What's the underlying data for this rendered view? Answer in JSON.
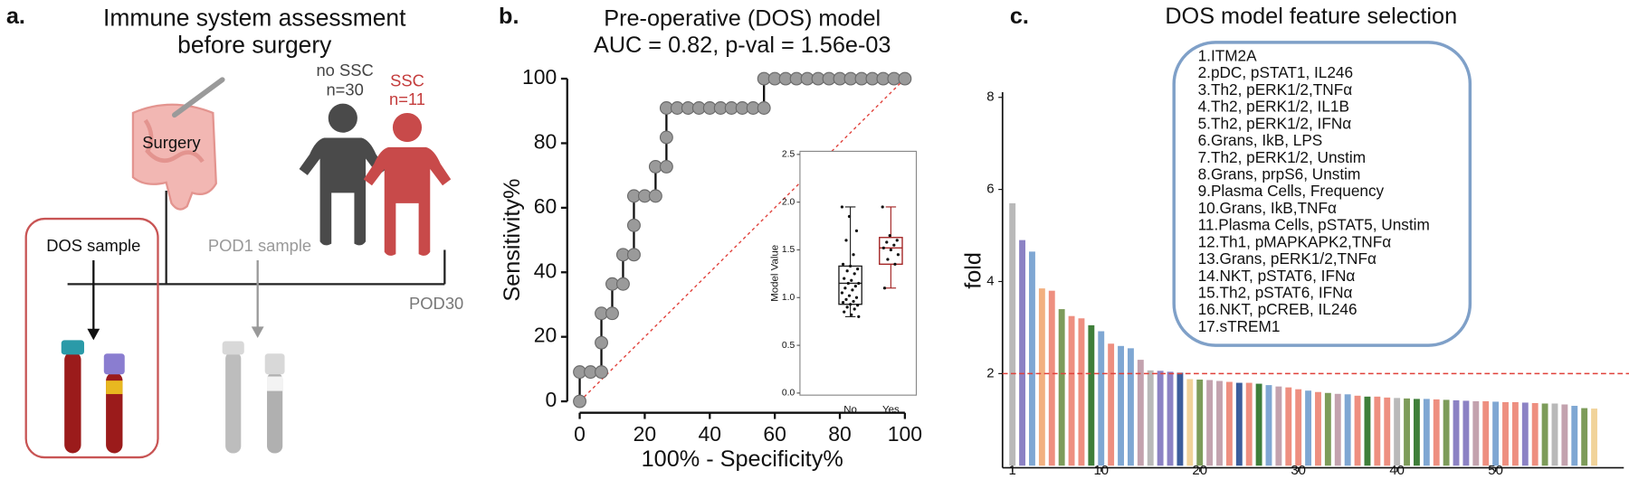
{
  "panel_labels": [
    "a.",
    "b.",
    "c."
  ],
  "diagram": {
    "title": [
      "Immune system assessment",
      "before surgery"
    ],
    "groups": [
      {
        "name": "no SSC",
        "n": "n=30"
      },
      {
        "name": "SSC",
        "n": "n=11"
      }
    ],
    "surgery": "Surgery",
    "samples": [
      "DOS sample",
      "POD1 sample"
    ],
    "endpoint": "POD30"
  },
  "chart_data": [
    {
      "type": "line",
      "title": [
        "Pre-operative (DOS) model",
        "AUC = 0.82, p-val = 1.56e-03"
      ],
      "x_label": "100% - Specificity%",
      "y_label": "Sensitivity%",
      "x": [
        0,
        0,
        3.33,
        6.67,
        6.67,
        6.67,
        10,
        10,
        13.33,
        13.33,
        16.67,
        16.67,
        16.67,
        20,
        23.33,
        23.33,
        26.67,
        26.67,
        26.67,
        30,
        33.33,
        36.67,
        40,
        43.33,
        46.67,
        50,
        53.33,
        56.67,
        56.67,
        60,
        63.33,
        66.67,
        70,
        73.33,
        76.67,
        80,
        83.33,
        86.67,
        90,
        93.33,
        96.67,
        100
      ],
      "values": [
        0,
        9.09,
        9.09,
        9.09,
        18.18,
        27.27,
        27.27,
        36.36,
        36.36,
        45.45,
        45.45,
        54.55,
        63.64,
        63.64,
        63.64,
        72.73,
        72.73,
        81.82,
        90.91,
        90.91,
        90.91,
        90.91,
        90.91,
        90.91,
        90.91,
        90.91,
        90.91,
        90.91,
        100,
        100,
        100,
        100,
        100,
        100,
        100,
        100,
        100,
        100,
        100,
        100,
        100,
        100
      ],
      "color": "#111111",
      "marker_color": "#9a9a9a",
      "reference_line_color": "#e0403a",
      "xlim": [
        0,
        100
      ],
      "ylim": [
        0,
        100
      ],
      "xticks": [
        0,
        20,
        40,
        60,
        80,
        100
      ],
      "yticks": [
        0,
        20,
        40,
        60,
        80,
        100
      ]
    },
    {
      "type": "box",
      "y_label": "Model Value",
      "categories": [
        "No",
        "Yes"
      ],
      "colors": [
        "#222222",
        "#a32424"
      ],
      "boxes": [
        {
          "min": 0.8,
          "q1": 0.93,
          "median": 1.15,
          "q3": 1.33,
          "max": 1.95,
          "points": [
            1.95,
            1.85,
            1.7,
            1.6,
            1.45,
            1.35,
            1.33,
            1.3,
            1.28,
            1.25,
            1.2,
            1.18,
            1.15,
            1.15,
            1.12,
            1.1,
            1.08,
            1.05,
            1.02,
            1.0,
            0.98,
            0.96,
            0.95,
            0.93,
            0.92,
            0.9,
            0.88,
            0.85,
            0.82,
            0.8
          ]
        },
        {
          "min": 1.1,
          "q1": 1.35,
          "median": 1.52,
          "q3": 1.63,
          "max": 1.95,
          "points": [
            1.95,
            1.65,
            1.6,
            1.58,
            1.55,
            1.52,
            1.5,
            1.45,
            1.4,
            1.35,
            1.1
          ]
        }
      ],
      "ylim": [
        0,
        2.5
      ],
      "yticks": [
        {
          "value": 0,
          "label": "0.0"
        },
        {
          "value": 0.5,
          "label": "0.5"
        },
        {
          "value": 1,
          "label": "1.0"
        },
        {
          "value": 1.5,
          "label": "1.5"
        },
        {
          "value": 2,
          "label": "2.0"
        },
        {
          "value": 2.5,
          "label": "2.5"
        }
      ]
    },
    {
      "type": "bar",
      "title": "DOS model feature selection",
      "y_label": "fold",
      "x": [
        1,
        2,
        3,
        4,
        5,
        6,
        7,
        8,
        9,
        10,
        11,
        12,
        13,
        14,
        15,
        16,
        17,
        18,
        19,
        20,
        21,
        22,
        23,
        24,
        25,
        26,
        27,
        28,
        29,
        30,
        31,
        32,
        33,
        34,
        35,
        36,
        37,
        38,
        39,
        40,
        41,
        42,
        43,
        44,
        45,
        46,
        47,
        48,
        49,
        50,
        51,
        52,
        53,
        54,
        55,
        56,
        57,
        58,
        59,
        60
      ],
      "values": [
        5.7,
        4.9,
        4.65,
        3.85,
        3.8,
        3.4,
        3.25,
        3.2,
        3.05,
        2.92,
        2.65,
        2.6,
        2.55,
        2.3,
        2.07,
        2.06,
        2.04,
        2.02,
        1.88,
        1.87,
        1.86,
        1.84,
        1.82,
        1.8,
        1.8,
        1.78,
        1.75,
        1.72,
        1.7,
        1.66,
        1.63,
        1.6,
        1.58,
        1.56,
        1.55,
        1.52,
        1.5,
        1.5,
        1.48,
        1.47,
        1.46,
        1.45,
        1.45,
        1.44,
        1.43,
        1.42,
        1.41,
        1.4,
        1.4,
        1.39,
        1.38,
        1.38,
        1.37,
        1.36,
        1.35,
        1.35,
        1.33,
        1.3,
        1.25,
        1.24
      ],
      "colors": [
        "#b9b9b9",
        "#8c82c4",
        "#7fa7d3",
        "#f2b080",
        "#ee8f80",
        "#7d9c5a",
        "#ee8f80",
        "#ee8f80",
        "#3f7f3a",
        "#7fa7d3",
        "#ee8f80",
        "#7fa7d3",
        "#7fa7d3",
        "#c3a2ae",
        "#b9b9b9",
        "#8c82c4",
        "#8c82c4",
        "#3c5d9c",
        "#f1d39a",
        "#7d9c5a",
        "#c3a2ae",
        "#c3a2ae",
        "#ee8f80",
        "#3c5d9c",
        "#ee8f80",
        "#3f7f3a",
        "#7fa7d3",
        "#c3a2ae",
        "#ee8f80",
        "#ee8f80",
        "#7fa7d3",
        "#ee8f80",
        "#7d9c5a",
        "#c3a2ae",
        "#7fa7d3",
        "#ee8f80",
        "#3f7f3a",
        "#ee8f80",
        "#ee8f80",
        "#b9b9b9",
        "#7d9c5a",
        "#3f7f3a",
        "#7fa7d3",
        "#ee8f80",
        "#7d9c5a",
        "#8c82c4",
        "#8c82c4",
        "#c3a2ae",
        "#ee8f80",
        "#7fa7d3",
        "#ee8f80",
        "#ee8f80",
        "#8c82c4",
        "#ee8f80",
        "#7d9c5a",
        "#b9b9b9",
        "#c3a2ae",
        "#7fa7d3",
        "#7d9c5a",
        "#f1d39a"
      ],
      "xlim": [
        0,
        63
      ],
      "ylim": [
        0,
        8
      ],
      "xticks": [
        1,
        10,
        20,
        30,
        40,
        50
      ],
      "yticks": [
        2,
        4,
        6,
        8
      ],
      "threshold": 2,
      "threshold_color": "#e0403a",
      "box_color": "#7fa0c8",
      "annotations": [
        "1.ITM2A",
        "2.pDC, pSTAT1, IL246",
        "3.Th2, pERK1/2,TNFα",
        "4.Th2, pERK1/2, IL1B",
        "5.Th2, pERK1/2, IFNα",
        "6.Grans, IkB, LPS",
        "7.Th2, pERK1/2, Unstim",
        "8.Grans, prpS6, Unstim",
        "9.Plasma Cells, Frequency",
        "10.Grans, IkB,TNFα",
        "11.Plasma Cells, pSTAT5, Unstim",
        "12.Th1, pMAPKAPK2,TNFα",
        "13.Grans, pERK1/2,TNFα",
        "14.NKT, pSTAT6, IFNα",
        "15.Th2, pSTAT6, IFNα",
        "16.NKT, pCREB, IL246",
        "17.sTREM1"
      ]
    }
  ]
}
